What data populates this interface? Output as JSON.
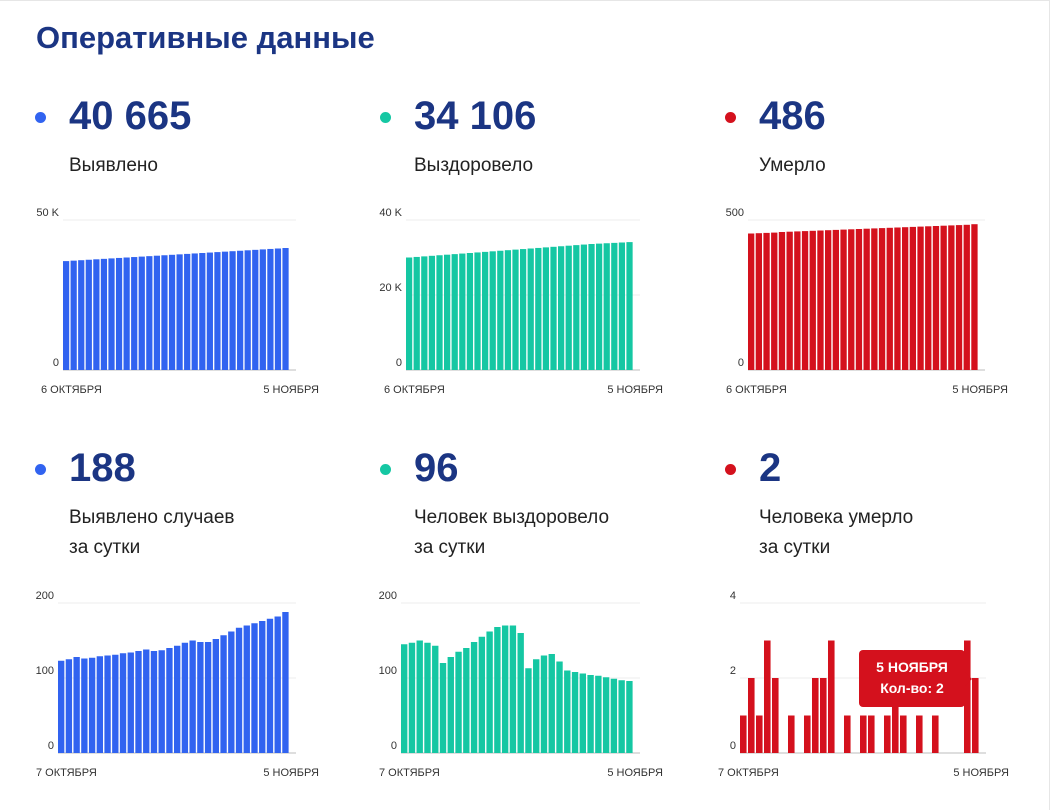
{
  "page": {
    "title": "Оперативные данные"
  },
  "colors": {
    "blue": "#3163f0",
    "green": "#15c7a3",
    "red": "#d4111d",
    "title": "#1b3583"
  },
  "panels": [
    {
      "id": "detected-total",
      "big": "40 665",
      "label_lines": [
        "Выявлено"
      ],
      "color": "#3163f0",
      "dot_icon": "dot-icon"
    },
    {
      "id": "recovered-total",
      "big": "34 106",
      "label_lines": [
        "Выздоровело"
      ],
      "color": "#15c7a3",
      "dot_icon": "dot-icon"
    },
    {
      "id": "deaths-total",
      "big": "486",
      "label_lines": [
        "Умерло"
      ],
      "color": "#d4111d",
      "dot_icon": "dot-icon"
    },
    {
      "id": "detected-daily",
      "big": "188",
      "label_lines": [
        "Выявлено случаев",
        "за сутки"
      ],
      "color": "#3163f0",
      "dot_icon": "dot-icon"
    },
    {
      "id": "recovered-daily",
      "big": "96",
      "label_lines": [
        "Человек выздоровело",
        "за сутки"
      ],
      "color": "#15c7a3",
      "dot_icon": "dot-icon"
    },
    {
      "id": "deaths-daily",
      "big": "2",
      "label_lines": [
        "Человека умерло",
        "за сутки"
      ],
      "color": "#d4111d",
      "dot_icon": "dot-icon"
    }
  ],
  "tooltip": {
    "date": "5 НОЯБРЯ",
    "text": "Кол-во: 2"
  },
  "chart_data": [
    {
      "type": "bar",
      "title": "Выявлено",
      "ylim": [
        0,
        50000
      ],
      "yticks": [
        0,
        50000
      ],
      "ytick_labels": [
        "0",
        "50 K"
      ],
      "xtick_labels": [
        "6 ОКТЯБРЯ",
        "5 НОЯБРЯ"
      ],
      "values": [
        36300,
        36450,
        36600,
        36750,
        36900,
        37050,
        37200,
        37350,
        37500,
        37650,
        37800,
        37950,
        38100,
        38250,
        38400,
        38550,
        38700,
        38850,
        39000,
        39150,
        39300,
        39450,
        39600,
        39750,
        39900,
        40050,
        40200,
        40350,
        40500,
        40665
      ]
    },
    {
      "type": "bar",
      "title": "Выздоровело",
      "ylim": [
        0,
        40000
      ],
      "yticks": [
        0,
        20000,
        40000
      ],
      "ytick_labels": [
        "0",
        "20 K",
        "40 K"
      ],
      "xtick_labels": [
        "6 ОКТЯБРЯ",
        "5 НОЯБРЯ"
      ],
      "values": [
        30000,
        30150,
        30300,
        30450,
        30600,
        30750,
        30900,
        31050,
        31200,
        31350,
        31500,
        31650,
        31800,
        31950,
        32100,
        32250,
        32400,
        32550,
        32700,
        32850,
        33000,
        33150,
        33300,
        33450,
        33600,
        33700,
        33800,
        33900,
        34000,
        34106
      ]
    },
    {
      "type": "bar",
      "title": "Умерло",
      "ylim": [
        0,
        500
      ],
      "yticks": [
        0,
        500
      ],
      "ytick_labels": [
        "0",
        "500"
      ],
      "xtick_labels": [
        "6 ОКТЯБРЯ",
        "5 НОЯБРЯ"
      ],
      "values": [
        455,
        456,
        457,
        458,
        460,
        461,
        462,
        463,
        464,
        465,
        466,
        467,
        468,
        469,
        470,
        471,
        472,
        473,
        474,
        475,
        476,
        477,
        478,
        479,
        480,
        481,
        482,
        483,
        484,
        486
      ]
    },
    {
      "type": "bar",
      "title": "Выявлено случаев за сутки",
      "ylim": [
        0,
        200
      ],
      "yticks": [
        0,
        100,
        200
      ],
      "ytick_labels": [
        "0",
        "100",
        "200"
      ],
      "xtick_labels": [
        "7 ОКТЯБРЯ",
        "5 НОЯБРЯ"
      ],
      "values": [
        123,
        125,
        128,
        126,
        127,
        129,
        130,
        131,
        133,
        134,
        136,
        138,
        136,
        137,
        140,
        143,
        147,
        150,
        148,
        148,
        152,
        157,
        162,
        167,
        170,
        173,
        176,
        179,
        182,
        188
      ]
    },
    {
      "type": "bar",
      "title": "Человек выздоровело за сутки",
      "ylim": [
        0,
        200
      ],
      "yticks": [
        0,
        100,
        200
      ],
      "ytick_labels": [
        "0",
        "100",
        "200"
      ],
      "xtick_labels": [
        "7 ОКТЯБРЯ",
        "5 НОЯБРЯ"
      ],
      "values": [
        145,
        147,
        150,
        147,
        143,
        120,
        128,
        135,
        140,
        148,
        155,
        162,
        168,
        170,
        170,
        160,
        113,
        125,
        130,
        132,
        122,
        110,
        108,
        106,
        104,
        103,
        101,
        99,
        97,
        96
      ]
    },
    {
      "type": "bar",
      "title": "Человека умерло за сутки",
      "ylim": [
        0,
        4
      ],
      "yticks": [
        0,
        2,
        4
      ],
      "ytick_labels": [
        "0",
        "2",
        "4"
      ],
      "xtick_labels": [
        "7 ОКТЯБРЯ",
        "5 НОЯБРЯ"
      ],
      "values": [
        1,
        2,
        1,
        3,
        2,
        0,
        1,
        0,
        1,
        2,
        2,
        3,
        0,
        1,
        0,
        1,
        1,
        0,
        1,
        2,
        1,
        0,
        1,
        0,
        1,
        0,
        0,
        0,
        3,
        2
      ]
    }
  ]
}
